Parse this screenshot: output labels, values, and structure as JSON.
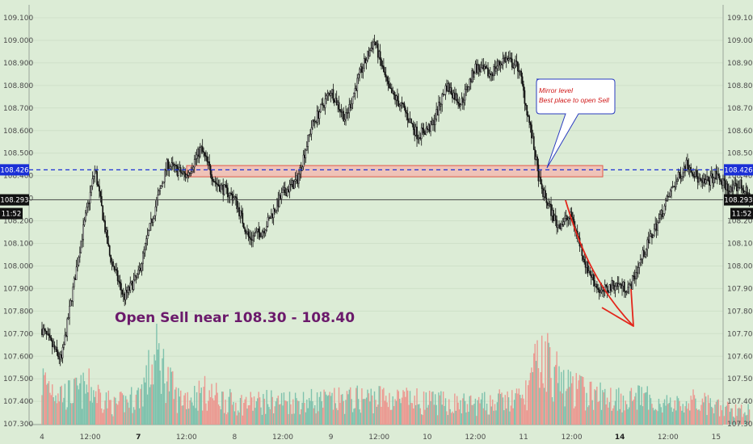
{
  "chart_data": {
    "type": "candlestick",
    "colors": {
      "background": "#dcecd6",
      "candle": "#111111",
      "volume_up": "#7fc2ad",
      "volume_down": "#eb9a92",
      "level_line": "#1a2fd6",
      "zone_fill": "#f6b6ae",
      "zone_border": "#e05a4a",
      "annotation": "#6b1a6b",
      "arrow": "#e3261b",
      "note_text": "#d01818",
      "note_border": "#2a3cc0"
    },
    "y_axis": {
      "range": [
        107.3,
        109.15
      ],
      "ticks": [
        "109.100",
        "109.000",
        "108.900",
        "108.800",
        "108.700",
        "108.600",
        "108.500",
        "108.400",
        "108.300",
        "108.200",
        "108.100",
        "108.000",
        "107.900",
        "107.800",
        "107.700",
        "107.600",
        "107.500",
        "107.400",
        "107.300"
      ]
    },
    "x_axis": {
      "labels": [
        "4",
        "12:00",
        "7",
        "12:00",
        "8",
        "12:00",
        "9",
        "12:00",
        "10",
        "12:00",
        "11",
        "12:00",
        "14",
        "12:00",
        "15"
      ],
      "bold_labels": [
        "7",
        "14"
      ]
    },
    "price_path": [
      [
        0,
        107.72
      ],
      [
        0.4,
        107.58
      ],
      [
        0.8,
        108.1
      ],
      [
        1.1,
        108.43
      ],
      [
        1.4,
        108.05
      ],
      [
        1.7,
        107.86
      ],
      [
        2.0,
        107.96
      ],
      [
        2.3,
        108.22
      ],
      [
        2.6,
        108.45
      ],
      [
        3.0,
        108.4
      ],
      [
        3.3,
        108.52
      ],
      [
        3.6,
        108.37
      ],
      [
        4.0,
        108.3
      ],
      [
        4.3,
        108.12
      ],
      [
        4.6,
        108.16
      ],
      [
        5.0,
        108.32
      ],
      [
        5.3,
        108.38
      ],
      [
        5.6,
        108.62
      ],
      [
        6.0,
        108.78
      ],
      [
        6.3,
        108.65
      ],
      [
        6.6,
        108.85
      ],
      [
        6.9,
        109.0
      ],
      [
        7.2,
        108.78
      ],
      [
        7.5,
        108.7
      ],
      [
        7.8,
        108.58
      ],
      [
        8.1,
        108.62
      ],
      [
        8.4,
        108.8
      ],
      [
        8.7,
        108.72
      ],
      [
        9.0,
        108.88
      ],
      [
        9.3,
        108.85
      ],
      [
        9.6,
        108.92
      ],
      [
        9.9,
        108.88
      ],
      [
        10.15,
        108.6
      ],
      [
        10.35,
        108.35
      ],
      [
        10.7,
        108.18
      ],
      [
        11.0,
        108.22
      ],
      [
        11.3,
        108.0
      ],
      [
        11.6,
        107.88
      ],
      [
        11.9,
        107.92
      ],
      [
        12.2,
        107.9
      ],
      [
        12.5,
        108.06
      ],
      [
        12.8,
        108.2
      ],
      [
        13.1,
        108.35
      ],
      [
        13.4,
        108.46
      ],
      [
        13.7,
        108.36
      ],
      [
        14.0,
        108.4
      ],
      [
        14.3,
        108.33
      ],
      [
        14.5,
        108.36
      ],
      [
        14.7,
        108.3
      ]
    ],
    "volume_profile": [
      [
        0,
        0.38
      ],
      [
        0.5,
        0.25
      ],
      [
        1.0,
        0.31
      ],
      [
        1.5,
        0.16
      ],
      [
        2.0,
        0.24
      ],
      [
        2.4,
        0.58
      ],
      [
        2.8,
        0.22
      ],
      [
        3.4,
        0.27
      ],
      [
        4.0,
        0.18
      ],
      [
        5.0,
        0.2
      ],
      [
        6.0,
        0.2
      ],
      [
        7.0,
        0.23
      ],
      [
        8.0,
        0.19
      ],
      [
        9.0,
        0.17
      ],
      [
        10.0,
        0.22
      ],
      [
        10.4,
        0.6
      ],
      [
        10.8,
        0.34
      ],
      [
        11.5,
        0.24
      ],
      [
        12.5,
        0.22
      ],
      [
        13.2,
        0.16
      ],
      [
        13.6,
        0.2
      ],
      [
        14.0,
        0.14
      ],
      [
        14.7,
        0.12
      ]
    ],
    "current_price": {
      "value": "108.293",
      "countdown": "11:52"
    },
    "resistance_level": {
      "value": "108.426",
      "zone_low": 108.395,
      "zone_high": 108.445
    },
    "text_annotation": "Open Sell near 108.30 - 108.40",
    "callout": {
      "line1": "Mirror level",
      "line2": "Best place to open Sell"
    }
  }
}
